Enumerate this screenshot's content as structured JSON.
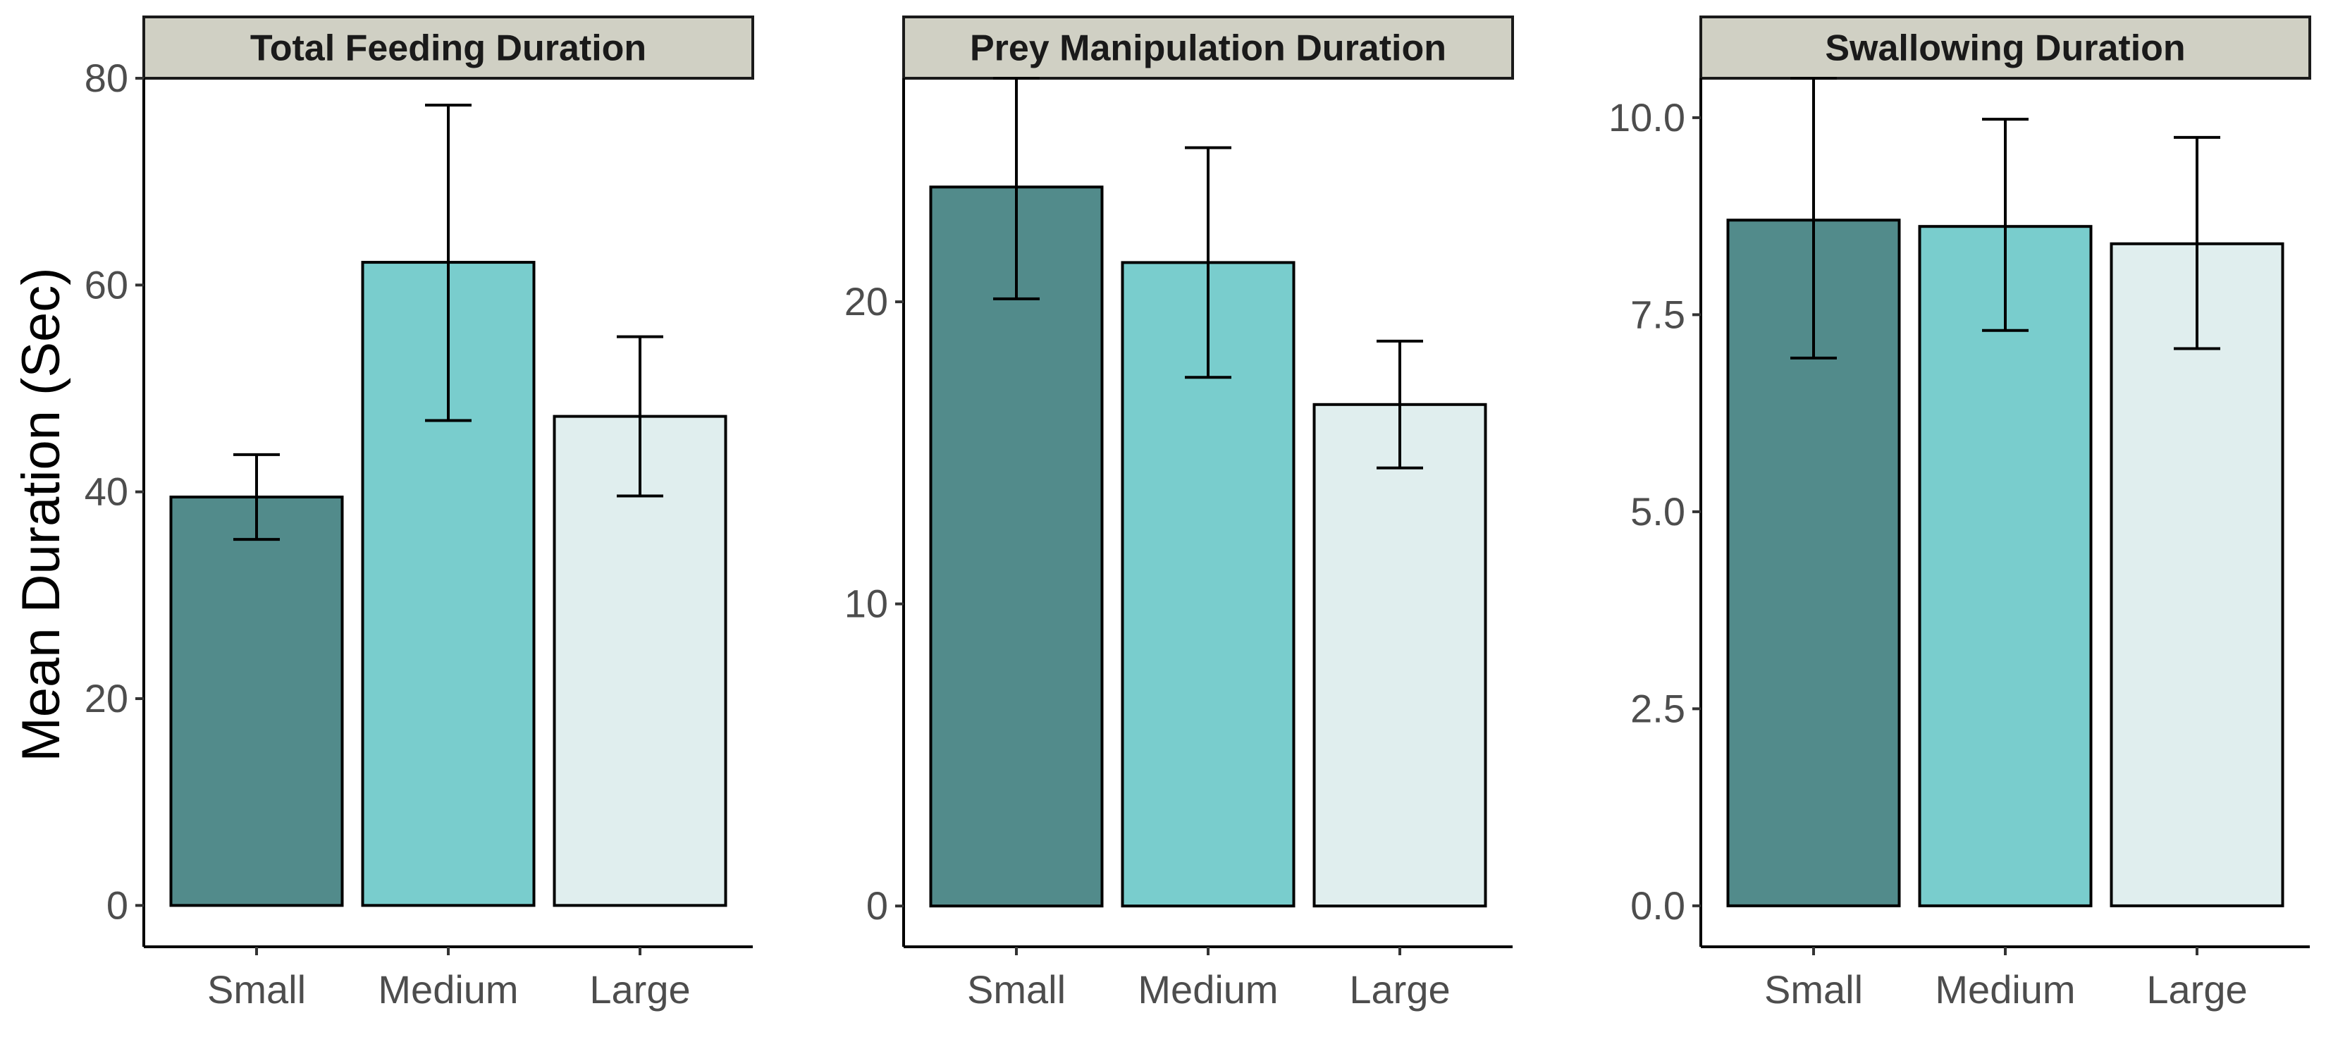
{
  "chart_data": {
    "type": "bar",
    "ylabel": "Mean Duration (Sec)",
    "colors": {
      "Small": "#528b8b",
      "Medium": "#79cdcd",
      "Large": "#e0eeee",
      "strip_fill": "#d0d0c4"
    },
    "facets": [
      {
        "title": "Total Feeding Duration",
        "categories": [
          "Small",
          "Medium",
          "Large"
        ],
        "values": [
          39.5,
          62.2,
          47.3
        ],
        "error_low": [
          35.4,
          46.9,
          39.6
        ],
        "error_high": [
          43.6,
          77.4,
          55.0
        ],
        "ylim": [
          -4,
          80
        ],
        "yticks": [
          0,
          20,
          40,
          60,
          80
        ],
        "ytick_labels": [
          "0",
          "20",
          "40",
          "60",
          "80"
        ]
      },
      {
        "title": "Prey Manipulation Duration",
        "categories": [
          "Small",
          "Medium",
          "Large"
        ],
        "values": [
          23.8,
          21.3,
          16.6
        ],
        "error_low": [
          20.1,
          17.5,
          14.5
        ],
        "error_high": [
          27.4,
          25.1,
          18.7
        ],
        "ylim": [
          -1.35,
          27.4
        ],
        "yticks": [
          0,
          10,
          20
        ],
        "ytick_labels": [
          "0",
          "10",
          "20"
        ]
      },
      {
        "title": "Swallowing Duration",
        "categories": [
          "Small",
          "Medium",
          "Large"
        ],
        "values": [
          8.7,
          8.62,
          8.4
        ],
        "error_low": [
          6.95,
          7.3,
          7.07
        ],
        "error_high": [
          10.5,
          9.98,
          9.75
        ],
        "ylim": [
          -0.52,
          10.5
        ],
        "yticks": [
          0,
          2.5,
          5,
          7.5,
          10
        ],
        "ytick_labels": [
          "0.0",
          "2.5",
          "5.0",
          "7.5",
          "10.0"
        ]
      }
    ]
  }
}
